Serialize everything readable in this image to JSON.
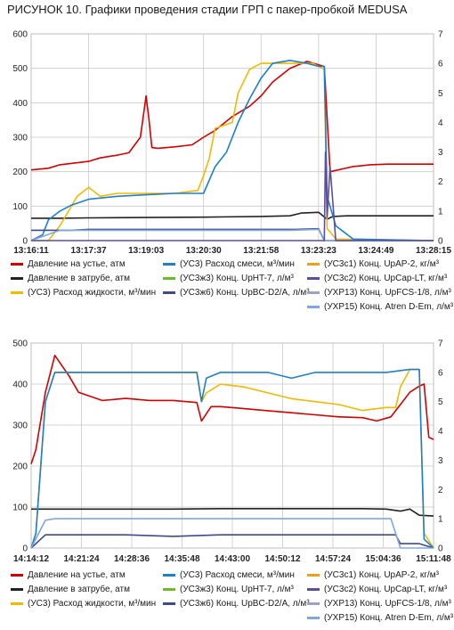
{
  "figure": {
    "label": "РИСУНОК 10.",
    "title": "Графики проведения стадии ГРП с пакер-пробкой MEDUSA"
  },
  "colors": {
    "pressure_wellhead": "#d40000",
    "pressure_annulus": "#222222",
    "fluid_rate": "#f5b800",
    "slurry_rate": "#1f7fc9",
    "conc_upap2": "#f0a020",
    "conc_upht7": "#6cbb2a",
    "conc_upcaplt": "#5a4ea0",
    "conc_upbc": "#3f4a8a",
    "conc_upfcs": "#9aa3c0",
    "conc_atren": "#7fa8e0"
  },
  "legend": [
    {
      "key": "pressure_wellhead",
      "label": "Давление на устье, атм"
    },
    {
      "key": "slurry_rate",
      "label": "(УС3) Расход смеси, м³/мин"
    },
    {
      "key": "conc_upap2",
      "label": "(УС3с1) Конц. UpAP-2, кг/м³"
    },
    {
      "key": "pressure_annulus",
      "label": "Давление в затрубе, атм"
    },
    {
      "key": "conc_upht7",
      "label": "(УС3ж3) Конц. UpHT-7, л/м³"
    },
    {
      "key": "conc_upcaplt",
      "label": "(УС3с2) Конц. UpCap-LT, кг/м³"
    },
    {
      "key": "fluid_rate",
      "label": "(УС3) Расход жидкости, м³/мин"
    },
    {
      "key": "conc_upbc",
      "label": "(УС3ж6) Конц. UpBC-D2/A, л/м³"
    },
    {
      "key": "conc_upfcs",
      "label": "(УХР13) Конц. UpFCS-1/8, л/м³"
    },
    {
      "key": "conc_atren",
      "label": "(УХР15) Конц. Atren D-Em, л/м³"
    }
  ],
  "chart_data": [
    {
      "type": "line",
      "left_ylim": [
        0,
        600
      ],
      "right_ylim": [
        0,
        7
      ],
      "left_ticks": [
        "0",
        "100",
        "200",
        "300",
        "400",
        "500",
        "600"
      ],
      "right_ticks": [
        "0",
        "1",
        "2",
        "3",
        "4",
        "5",
        "6",
        "7"
      ],
      "x_ticks": [
        "13:16:11",
        "13:17:37",
        "13:19:03",
        "13:20:30",
        "13:21:58",
        "13:23:23",
        "13:24:49",
        "13:28:15"
      ],
      "grid": true,
      "series": [
        {
          "key": "pressure_wellhead",
          "axis": "left",
          "x": [
            0,
            0.3,
            0.5,
            1.0,
            1.2,
            1.5,
            1.7,
            1.9,
            2.0,
            2.05,
            2.1,
            2.2,
            2.5,
            2.8,
            3.0,
            3.2,
            3.5,
            3.8,
            4.0,
            4.2,
            4.5,
            4.8,
            5.0,
            5.1,
            5.2,
            5.6,
            5.9,
            6.2,
            6.7,
            7.0
          ],
          "y": [
            205,
            210,
            220,
            230,
            240,
            248,
            255,
            300,
            420,
            350,
            270,
            268,
            272,
            278,
            300,
            320,
            360,
            390,
            420,
            460,
            500,
            520,
            510,
            505,
            200,
            215,
            220,
            222,
            222,
            222
          ]
        },
        {
          "key": "pressure_annulus",
          "axis": "left",
          "x": [
            0,
            0.5,
            1.0,
            2.0,
            3.0,
            4.0,
            4.5,
            4.7,
            5.0,
            5.15,
            5.25,
            5.5,
            6.0,
            7.0
          ],
          "y": [
            65,
            65,
            66,
            67,
            68,
            70,
            72,
            80,
            82,
            62,
            70,
            72,
            72,
            72
          ]
        },
        {
          "key": "fluid_rate",
          "axis": "right",
          "x": [
            0,
            0.3,
            0.5,
            0.8,
            1.0,
            1.2,
            1.5,
            2.0,
            2.5,
            2.9,
            3.0,
            3.1,
            3.2,
            3.5,
            3.6,
            3.8,
            4.0,
            4.3,
            4.6,
            4.9,
            5.1,
            5.15,
            5.2,
            5.3,
            7.0
          ],
          "y": [
            0,
            0,
            0.5,
            1.5,
            1.8,
            1.5,
            1.6,
            1.6,
            1.6,
            1.7,
            2.2,
            2.8,
            3.8,
            4.0,
            5.0,
            5.8,
            6.0,
            6.0,
            6.0,
            6.0,
            5.8,
            0.4,
            0.3,
            0.05,
            0
          ]
        },
        {
          "key": "slurry_rate",
          "axis": "right",
          "x": [
            0,
            0.2,
            0.3,
            0.5,
            0.7,
            1.0,
            1.5,
            2.0,
            2.5,
            3.0,
            3.2,
            3.4,
            3.6,
            3.8,
            4.0,
            4.2,
            4.5,
            4.8,
            5.0,
            5.1,
            5.15,
            5.3,
            5.6,
            7.0
          ],
          "y": [
            0,
            0.2,
            0.7,
            1.0,
            1.2,
            1.4,
            1.5,
            1.55,
            1.6,
            1.6,
            2.5,
            3.0,
            4.0,
            4.8,
            5.5,
            6.0,
            6.1,
            6.0,
            5.9,
            5.9,
            1.5,
            0.5,
            0.05,
            0
          ]
        },
        {
          "key": "conc_upbc",
          "axis": "right",
          "x": [
            0,
            0.7,
            1.0,
            2.0,
            3.0,
            4.0,
            4.6,
            5.0,
            5.1,
            5.2,
            7.0
          ],
          "y": [
            0.35,
            0.35,
            0.38,
            0.38,
            0.38,
            0.38,
            0.38,
            0.4,
            0,
            0,
            0
          ]
        },
        {
          "key": "conc_atren",
          "axis": "right",
          "x": [
            0,
            0.5,
            1.0,
            3.0,
            4.5,
            5.0,
            5.1,
            5.2,
            7.0
          ],
          "y": [
            0,
            0.35,
            0.35,
            0.35,
            0.35,
            0.38,
            0,
            0,
            0
          ]
        },
        {
          "key": "conc_upcaplt",
          "axis": "right",
          "x": [
            0,
            5.1,
            5.12,
            5.15,
            5.2,
            5.3,
            7.0
          ],
          "y": [
            0,
            0,
            3.0,
            0.8,
            2.5,
            0,
            0
          ]
        }
      ]
    },
    {
      "type": "line",
      "left_ylim": [
        0,
        500
      ],
      "right_ylim": [
        0,
        7
      ],
      "left_ticks": [
        "0",
        "100",
        "200",
        "300",
        "400",
        "500"
      ],
      "right_ticks": [
        "0",
        "1",
        "2",
        "3",
        "4",
        "5",
        "6",
        "7"
      ],
      "x_ticks": [
        "14:14:12",
        "14:21:24",
        "14:28:36",
        "14:35:48",
        "14:43:00",
        "14:50:12",
        "14:57:24",
        "15:04:36",
        "15:11:48"
      ],
      "grid": true,
      "series": [
        {
          "key": "pressure_wellhead",
          "axis": "left",
          "x": [
            0,
            0.1,
            0.3,
            0.5,
            0.8,
            1.0,
            1.5,
            2.0,
            2.5,
            3.0,
            3.5,
            3.6,
            3.8,
            4.0,
            4.5,
            5.0,
            5.5,
            6.0,
            6.5,
            7.0,
            7.3,
            7.6,
            7.8,
            8.0,
            8.2,
            8.3,
            8.4,
            8.5
          ],
          "y": [
            205,
            240,
            380,
            470,
            420,
            380,
            360,
            365,
            360,
            360,
            355,
            310,
            345,
            345,
            340,
            335,
            330,
            325,
            320,
            318,
            310,
            320,
            350,
            380,
            395,
            400,
            270,
            265
          ]
        },
        {
          "key": "pressure_annulus",
          "axis": "left",
          "x": [
            0,
            0.5,
            1.0,
            2.0,
            3.0,
            4.0,
            5.0,
            6.0,
            7.0,
            7.5,
            7.8,
            8.0,
            8.2,
            8.5
          ],
          "y": [
            95,
            95,
            95,
            95,
            95,
            96,
            96,
            96,
            96,
            95,
            90,
            95,
            80,
            78
          ]
        },
        {
          "key": "fluid_rate",
          "axis": "right",
          "x": [
            0,
            0.1,
            0.3,
            0.5,
            1.0,
            2.0,
            3.0,
            3.5,
            3.6,
            3.7,
            4.0,
            4.5,
            5.0,
            5.5,
            6.0,
            6.5,
            7.0,
            7.5,
            7.7,
            7.8,
            8.0,
            8.2,
            8.3,
            8.5
          ],
          "y": [
            0,
            0.5,
            5.0,
            6.0,
            6.0,
            6.0,
            6.0,
            6.0,
            5.0,
            5.3,
            5.6,
            5.5,
            5.3,
            5.1,
            5.0,
            4.9,
            4.7,
            4.8,
            4.8,
            5.5,
            6.1,
            6.1,
            0.5,
            0
          ]
        },
        {
          "key": "slurry_rate",
          "axis": "right",
          "x": [
            0,
            0.1,
            0.3,
            0.5,
            1.0,
            2.0,
            3.0,
            3.5,
            3.6,
            3.7,
            4.0,
            4.5,
            5.0,
            5.5,
            6.0,
            6.5,
            7.0,
            7.5,
            8.0,
            8.2,
            8.3,
            8.5
          ],
          "y": [
            0,
            0.5,
            5.0,
            6.0,
            6.0,
            6.0,
            6.0,
            6.0,
            5.0,
            5.8,
            6.0,
            6.0,
            6.0,
            5.8,
            6.0,
            6.0,
            6.0,
            6.0,
            6.1,
            6.1,
            0.3,
            0
          ]
        },
        {
          "key": "conc_upbc",
          "axis": "right",
          "x": [
            0,
            0.3,
            0.5,
            1.0,
            2.0,
            3.0,
            4.0,
            5.0,
            6.0,
            7.0,
            7.5,
            7.7,
            7.8,
            8.0,
            8.2,
            8.5
          ],
          "y": [
            0,
            0.45,
            0.45,
            0.45,
            0.45,
            0.4,
            0.45,
            0.45,
            0.45,
            0.45,
            0.45,
            0.45,
            0.15,
            0.15,
            0.15,
            0
          ]
        },
        {
          "key": "conc_atren",
          "axis": "right",
          "x": [
            0,
            0.3,
            0.5,
            1.0,
            3.0,
            5.0,
            7.0,
            7.6,
            7.8,
            8.5
          ],
          "y": [
            0,
            0.95,
            1.0,
            1.0,
            1.0,
            1.0,
            1.0,
            1.0,
            0,
            0
          ]
        }
      ]
    }
  ]
}
